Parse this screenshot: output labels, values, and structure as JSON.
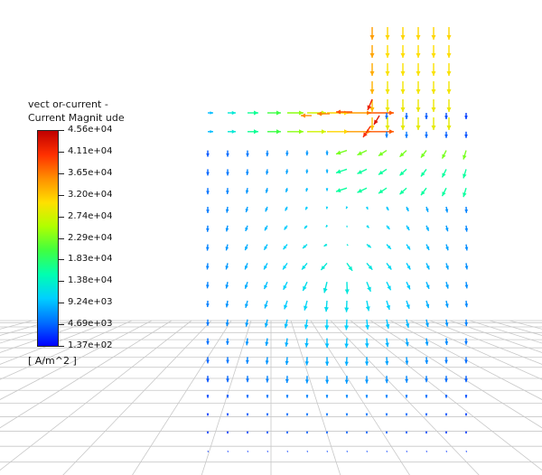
{
  "legend": {
    "title_line1": "vect or-current -",
    "title_line2": "Current Magnit ude",
    "ticks": [
      "4.56e+04",
      "4.11e+04",
      "3.65e+04",
      "3.20e+04",
      "2.74e+04",
      "2.29e+04",
      "1.83e+04",
      "1.38e+04",
      "9.24e+03",
      "4.69e+03",
      "1.37e+02"
    ],
    "units": "[ A/m^2 ]",
    "min": 137,
    "max": 45600,
    "colormap": [
      "#0000ff",
      "#0070ff",
      "#00d0ff",
      "#00ffb0",
      "#40ff40",
      "#b0ff00",
      "#ffe000",
      "#ff9000",
      "#ff3000",
      "#c00000"
    ]
  },
  "scene": {
    "grid_color": "#c8c8c8",
    "background": "#ffffff"
  }
}
